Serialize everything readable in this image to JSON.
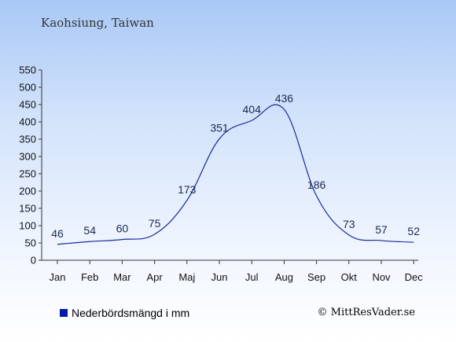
{
  "header": {
    "location": "Kaohsiung, Taiwan"
  },
  "legend": {
    "label": "Nederbördsmängd i mm"
  },
  "footer": {
    "copyright": "© MittResVader.se"
  },
  "colors": {
    "line": "#1a2aa0",
    "swatch": "#0a1aa8",
    "axis": "#333333",
    "labels": "#1a2a50"
  },
  "chart_data": {
    "type": "line",
    "title": "",
    "xlabel": "",
    "ylabel": "",
    "categories": [
      "Jan",
      "Feb",
      "Mar",
      "Apr",
      "Maj",
      "Jun",
      "Jul",
      "Aug",
      "Sep",
      "Okt",
      "Nov",
      "Dec"
    ],
    "series": [
      {
        "name": "Nederbördsmängd i mm",
        "values": [
          46,
          54,
          60,
          75,
          173,
          351,
          404,
          436,
          186,
          73,
          57,
          52
        ]
      }
    ],
    "ylim": [
      0,
      550
    ],
    "yticks": [
      0,
      50,
      100,
      150,
      200,
      250,
      300,
      350,
      400,
      450,
      500,
      550
    ],
    "grid": false,
    "legend_position": "bottom-left"
  }
}
